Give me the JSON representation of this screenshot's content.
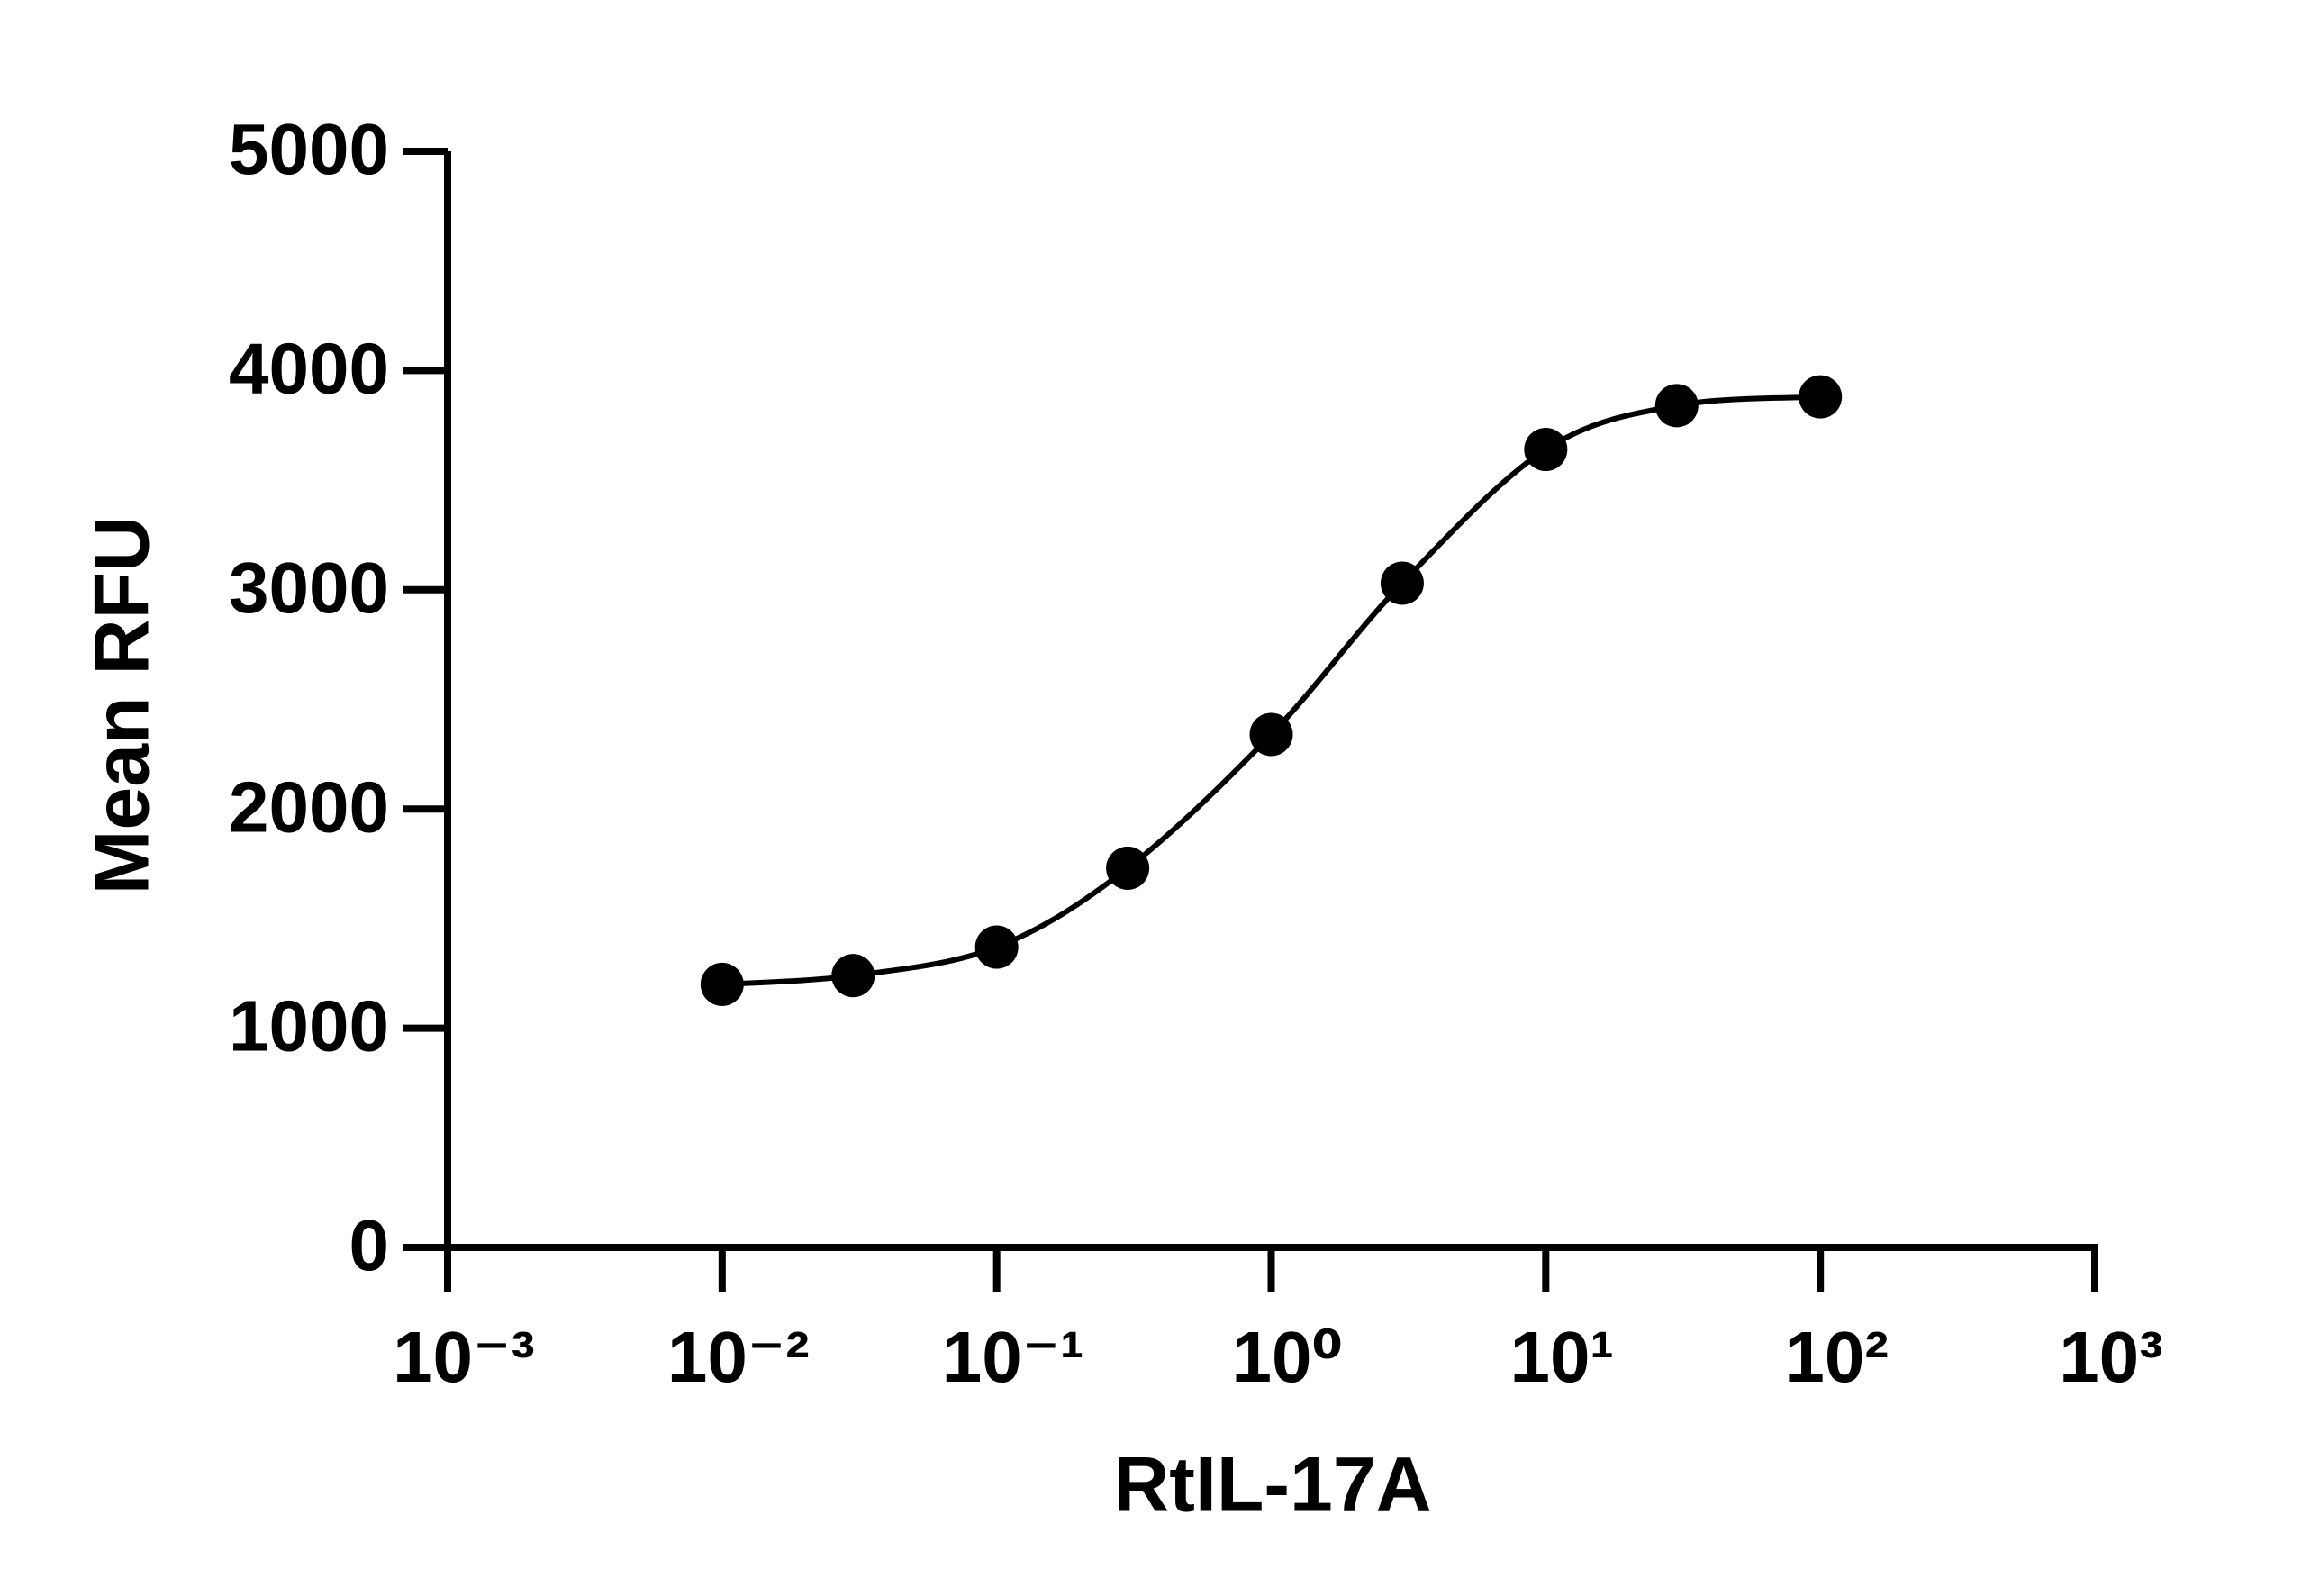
{
  "chart_data": {
    "type": "scatter",
    "x_label": "RtIL-17A",
    "y_label": "Mean RFU",
    "x": [
      0.01,
      0.03,
      0.1,
      0.3,
      1,
      3,
      10,
      30,
      100
    ],
    "values": [
      1200,
      1240,
      1370,
      1730,
      2340,
      3030,
      3640,
      3840,
      3880
    ],
    "color": "#000000",
    "xscale": "log",
    "xlim": [
      0.001,
      1000
    ],
    "xticks": [
      {
        "value": 0.001,
        "label": "10⁻³"
      },
      {
        "value": 0.01,
        "label": "10⁻²"
      },
      {
        "value": 0.1,
        "label": "10⁻¹"
      },
      {
        "value": 1,
        "label": "10⁰"
      },
      {
        "value": 10,
        "label": "10¹"
      },
      {
        "value": 100,
        "label": "10²"
      },
      {
        "value": 1000,
        "label": "10³"
      }
    ],
    "ylim": [
      0,
      5000
    ],
    "yticks": [
      0,
      1000,
      2000,
      3000,
      4000,
      5000
    ],
    "grid": false
  }
}
